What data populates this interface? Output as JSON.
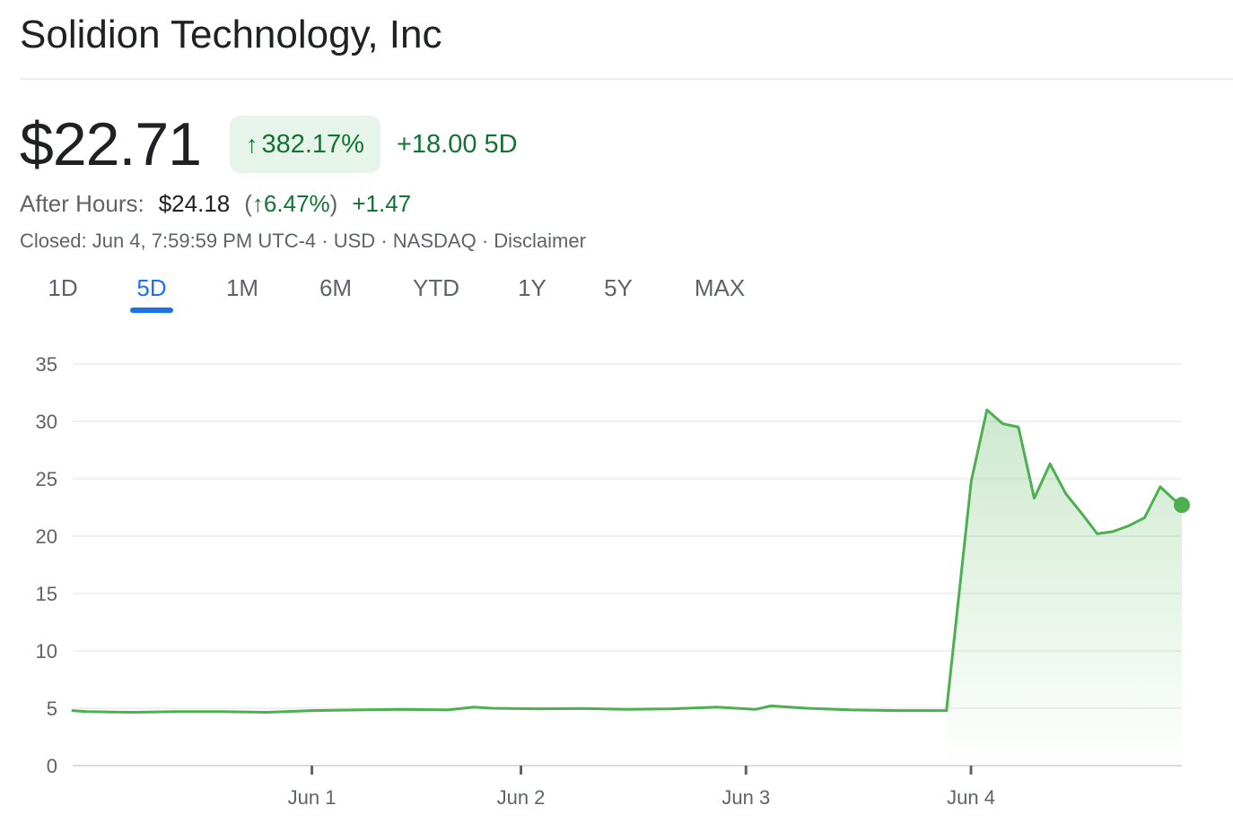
{
  "company": {
    "name": "Solidion Technology, Inc"
  },
  "quote": {
    "price": "$22.71",
    "change_arrow": "↑",
    "change_pct": "382.17%",
    "change_abs": "+18.00 5D",
    "color_positive": "#137333",
    "pill_bg": "#e6f4ea"
  },
  "after_hours": {
    "label": "After Hours:",
    "price": "$24.18",
    "pct_open": "(",
    "pct_arrow": "↑",
    "pct": "6.47%",
    "pct_close": ")",
    "abs": "+1.47"
  },
  "status": {
    "closed": "Closed: Jun 4, 7:59:59 PM UTC-4",
    "sep": "·",
    "currency": "USD",
    "exchange": "NASDAQ",
    "disclaimer": "Disclaimer"
  },
  "tabs": [
    {
      "label": "1D"
    },
    {
      "label": "5D"
    },
    {
      "label": "1M"
    },
    {
      "label": "6M"
    },
    {
      "label": "YTD"
    },
    {
      "label": "1Y"
    },
    {
      "label": "5Y"
    },
    {
      "label": "MAX"
    }
  ],
  "selected_tab": "5D",
  "chart_data": {
    "type": "area",
    "ylim": [
      0,
      35
    ],
    "y_ticks": [
      0,
      5,
      10,
      15,
      20,
      25,
      30,
      35
    ],
    "x_range": [
      -1.063,
      3.866
    ],
    "x_ticks": [
      {
        "label": "Jun 1",
        "x": 0
      },
      {
        "label": "Jun 2",
        "x": 0.929
      },
      {
        "label": "Jun 3",
        "x": 1.929
      },
      {
        "label": "Jun 4",
        "x": 2.929
      }
    ],
    "grid": true,
    "line_color": "#4caf50",
    "x": [
      -1.063,
      -1.0,
      -0.8,
      -0.6,
      -0.4,
      -0.2,
      0.0,
      0.2,
      0.4,
      0.6,
      0.72,
      0.8,
      1.0,
      1.2,
      1.4,
      1.6,
      1.8,
      1.97,
      2.04,
      2.2,
      2.4,
      2.6,
      2.82,
      2.93,
      3.0,
      3.07,
      3.14,
      3.21,
      3.28,
      3.35,
      3.42,
      3.49,
      3.56,
      3.63,
      3.7,
      3.77,
      3.83,
      3.866
    ],
    "values": [
      4.8,
      4.7,
      4.65,
      4.7,
      4.7,
      4.65,
      4.8,
      4.85,
      4.9,
      4.85,
      5.1,
      5.0,
      4.95,
      4.98,
      4.9,
      4.95,
      5.1,
      4.9,
      5.2,
      5.0,
      4.85,
      4.8,
      4.8,
      24.8,
      31.0,
      29.8,
      29.5,
      23.3,
      26.3,
      23.7,
      22.0,
      20.2,
      20.4,
      20.9,
      21.6,
      24.3,
      23.2,
      22.71
    ]
  }
}
